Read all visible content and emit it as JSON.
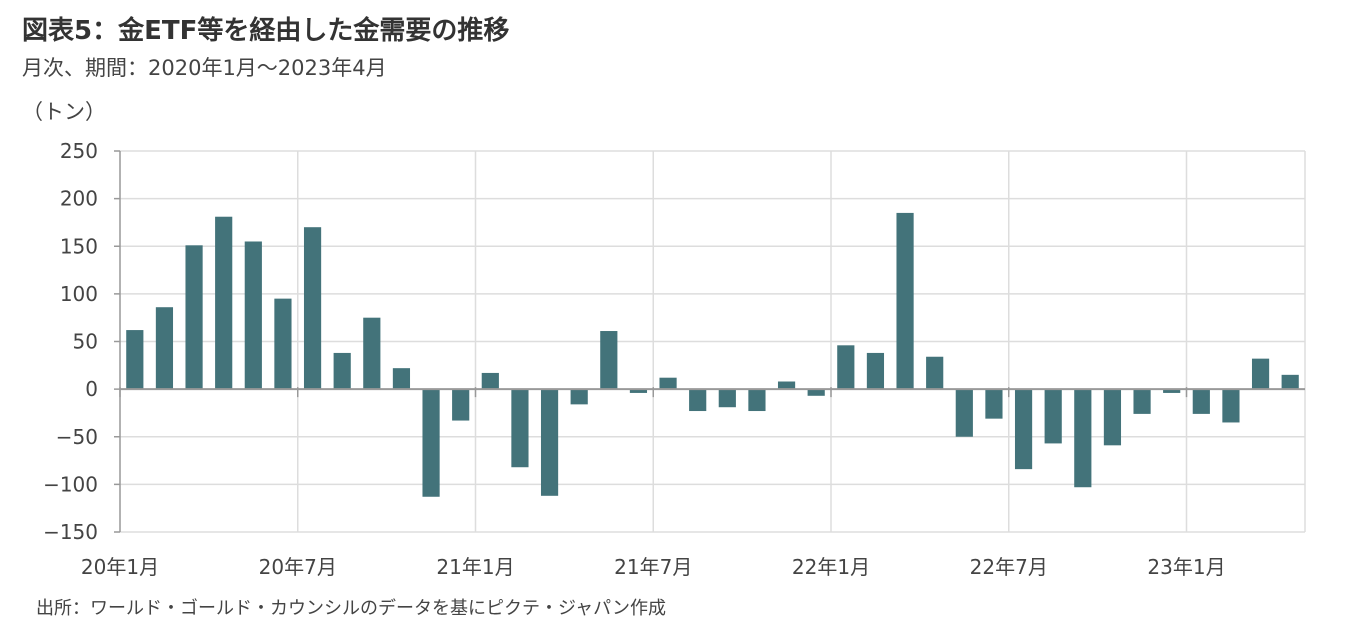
{
  "title": "図表5：金ETF等を経由した金需要の推移",
  "subtitle": "月次、期間：2020年1月～2023年4月",
  "unit_label": "（トン）",
  "source": "出所：ワールド・ゴールド・カウンシルのデータを基にピクテ・ジャパン作成",
  "chart_data": {
    "type": "bar",
    "title": "図表5：金ETF等を経由した金需要の推移",
    "subtitle": "月次、期間：2020年1月～2023年4月",
    "ylabel": "（トン）",
    "xlabel": "",
    "ylim": [
      -150,
      250
    ],
    "yticks": [
      250,
      200,
      150,
      100,
      50,
      0,
      -50,
      -100,
      -150
    ],
    "ytick_labels": [
      "250",
      "200",
      "150",
      "100",
      "50",
      "0",
      "−50",
      "−100",
      "−150"
    ],
    "grid": true,
    "bar_color": "#43737A",
    "categories": [
      "2020-01",
      "2020-02",
      "2020-03",
      "2020-04",
      "2020-05",
      "2020-06",
      "2020-07",
      "2020-08",
      "2020-09",
      "2020-10",
      "2020-11",
      "2020-12",
      "2021-01",
      "2021-02",
      "2021-03",
      "2021-04",
      "2021-05",
      "2021-06",
      "2021-07",
      "2021-08",
      "2021-09",
      "2021-10",
      "2021-11",
      "2021-12",
      "2022-01",
      "2022-02",
      "2022-03",
      "2022-04",
      "2022-05",
      "2022-06",
      "2022-07",
      "2022-08",
      "2022-09",
      "2022-10",
      "2022-11",
      "2022-12",
      "2023-01",
      "2023-02",
      "2023-03",
      "2023-04"
    ],
    "values": [
      62,
      86,
      151,
      181,
      155,
      95,
      170,
      38,
      75,
      22,
      -113,
      -33,
      17,
      -82,
      -112,
      -16,
      61,
      -4,
      12,
      -23,
      -19,
      -23,
      8,
      -7,
      46,
      38,
      185,
      34,
      -50,
      -31,
      -84,
      -57,
      -103,
      -59,
      -26,
      -4,
      -26,
      -35,
      32,
      15
    ],
    "x_tick_labels": [
      {
        "index": 0,
        "label": "20年1月"
      },
      {
        "index": 6,
        "label": "20年7月"
      },
      {
        "index": 12,
        "label": "21年1月"
      },
      {
        "index": 18,
        "label": "21年7月"
      },
      {
        "index": 24,
        "label": "22年1月"
      },
      {
        "index": 30,
        "label": "22年7月"
      },
      {
        "index": 36,
        "label": "23年1月"
      }
    ]
  }
}
